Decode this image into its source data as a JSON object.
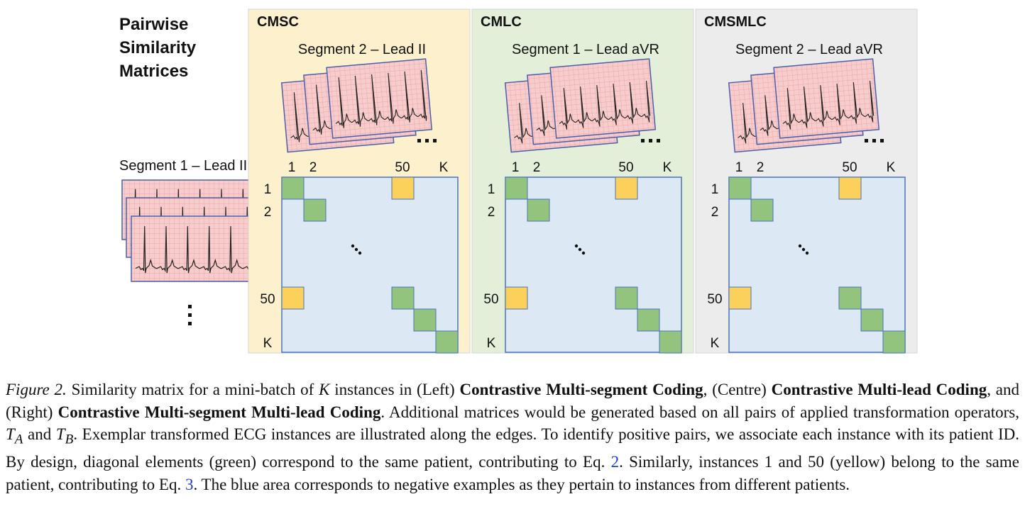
{
  "figure": {
    "side_title_lines": [
      "Pairwise",
      "Similarity",
      "Matrices"
    ],
    "left_segment_label": "Segment 1 – Lead II",
    "panels": [
      {
        "title": "CMSC",
        "segment_label": "Segment 2 – Lead II",
        "bg": "#fdf0cc"
      },
      {
        "title": "CMLC",
        "segment_label": "Segment 1 – Lead aVR",
        "bg": "#e3efd9"
      },
      {
        "title": "CMSMLC",
        "segment_label": "Segment 2 – Lead aVR",
        "bg": "#ececec"
      }
    ],
    "col_labels": [
      "1",
      "2",
      "50",
      "K"
    ],
    "row_labels": [
      "1",
      "2",
      "50",
      "K"
    ],
    "ellipsis": "…",
    "colors": {
      "matrix_fill": "#dde8f5",
      "matrix_border": "#4a73b8",
      "positive_diagonal": "#92c47d",
      "positive_same_patient": "#fbd15b",
      "ecg_paper": "#f7cccc",
      "ecg_grid": "#e89a9a",
      "ecg_frame": "#4a5fa8"
    }
  },
  "caption": {
    "fig_label": "Figure 2.",
    "t1": " Similarity matrix for a mini-batch of ",
    "k": "K",
    "t2": " instances in (Left) ",
    "b1": "Contrastive Multi-segment Coding",
    "t3": ", (Centre) ",
    "b2": "Contrastive Multi-lead Coding",
    "t4": ", and (Right) ",
    "b3": "Contrastive Multi-segment Multi-lead Coding",
    "t5": ". Additional matrices would be generated based on all pairs of applied transformation operators, ",
    "ta": "T",
    "ta_sub": "A",
    "t6": " and ",
    "tb": "T",
    "tb_sub": "B",
    "t7": ". Exemplar transformed ECG instances are illustrated along the edges. To identify positive pairs, we associate each instance with its patient ID. By design, diagonal elements (green) correspond to the same patient, contributing to Eq. ",
    "ref1": "2",
    "t8": ". Similarly, instances 1 and 50 (yellow) belong to the same patient, contributing to Eq. ",
    "ref2": "3",
    "t9": ". The blue area corresponds to negative examples as they pertain to instances from different patients."
  }
}
